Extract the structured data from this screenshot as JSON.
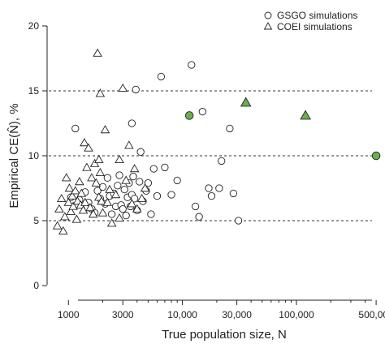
{
  "chart_data": {
    "type": "scatter",
    "xscale": "log",
    "xlim": [
      650,
      560000
    ],
    "ylim": [
      0,
      20
    ],
    "xlabel": "True population size, N",
    "ylabel": "Empirical CE(N̂), %",
    "xticks": [
      {
        "value": 1000,
        "label": "1000"
      },
      {
        "value": 3000,
        "label": "3000"
      },
      {
        "value": 10000,
        "label": "10,000"
      },
      {
        "value": 30000,
        "label": "30,000"
      },
      {
        "value": 100000,
        "label": "100,000"
      },
      {
        "value": 500000,
        "label": "500,000"
      }
    ],
    "yticks": [
      0,
      5,
      10,
      15,
      20
    ],
    "reference_lines": [
      5,
      10,
      15
    ],
    "grid": false,
    "legend_position": "top-right",
    "series": [
      {
        "name": "GSGO simulations",
        "marker": "circle",
        "fill": "#ffffff",
        "x": [
          1050,
          1150,
          1250,
          1400,
          1500,
          1600,
          1700,
          1800,
          1900,
          2000,
          2100,
          2200,
          2300,
          2400,
          2500,
          2600,
          2700,
          2800,
          2900,
          3000,
          3100,
          3200,
          3300,
          3400,
          3500,
          3600,
          3700,
          3800,
          3900,
          4000,
          4200,
          4500,
          4800,
          5000,
          5300,
          5600,
          6000,
          6500,
          7000,
          8000,
          9000,
          12000,
          13000,
          14000,
          15000,
          17000,
          18000,
          21000,
          22000,
          26000,
          28000,
          31000,
          3600,
          4300
        ],
        "y": [
          6.8,
          12.1,
          6.6,
          7.2,
          6.4,
          5.9,
          5.6,
          7.3,
          6.7,
          7.6,
          6.3,
          8.3,
          6.9,
          5.5,
          7.1,
          6.1,
          7.7,
          8.5,
          6.2,
          5.9,
          7.4,
          5.4,
          6.8,
          7.9,
          6.1,
          7.0,
          8.4,
          6.7,
          15.1,
          5.8,
          8.0,
          6.5,
          7.3,
          7.9,
          5.5,
          9.0,
          6.9,
          16.1,
          9.1,
          7.0,
          8.1,
          17.0,
          6.1,
          5.3,
          13.4,
          7.5,
          6.9,
          7.5,
          9.6,
          12.1,
          7.1,
          5.0,
          12.5,
          10.3
        ],
        "highlighted": [
          {
            "x": 11500,
            "y": 13.1,
            "fill": "#6ab04c"
          },
          {
            "x": 500000,
            "y": 10.0,
            "fill": "#6ab04c"
          }
        ]
      },
      {
        "name": "COEI simulations",
        "marker": "triangle",
        "fill": "#ffffff",
        "x": [
          800,
          830,
          870,
          900,
          930,
          960,
          1000,
          1020,
          1050,
          1080,
          1100,
          1150,
          1180,
          1200,
          1250,
          1280,
          1300,
          1350,
          1380,
          1400,
          1450,
          1500,
          1550,
          1600,
          1650,
          1700,
          1750,
          1800,
          1850,
          1900,
          1950,
          2000,
          2100,
          2200,
          2300,
          2400,
          2600,
          2800,
          3000,
          3200,
          3400,
          3600,
          3800,
          4000,
          4400,
          4700,
          1850,
          1900,
          2800
        ],
        "y": [
          4.6,
          5.9,
          6.7,
          4.2,
          5.3,
          8.3,
          6.4,
          7.5,
          5.7,
          6.9,
          6.1,
          7.3,
          5.1,
          6.5,
          8.0,
          6.2,
          7.1,
          5.8,
          11.0,
          6.4,
          9.1,
          10.6,
          6.0,
          8.3,
          5.5,
          9.4,
          7.9,
          17.9,
          6.8,
          14.8,
          6.5,
          5.6,
          12.0,
          6.4,
          7.4,
          4.8,
          7.0,
          9.7,
          15.2,
          8.1,
          10.8,
          6.3,
          9.0,
          5.9,
          6.7,
          7.5,
          9.7,
          8.7,
          5.2
        ],
        "highlighted": [
          {
            "x": 36000,
            "y": 14.1,
            "fill": "#6ab04c"
          },
          {
            "x": 120000,
            "y": 13.1,
            "fill": "#6ab04c"
          }
        ]
      }
    ]
  }
}
